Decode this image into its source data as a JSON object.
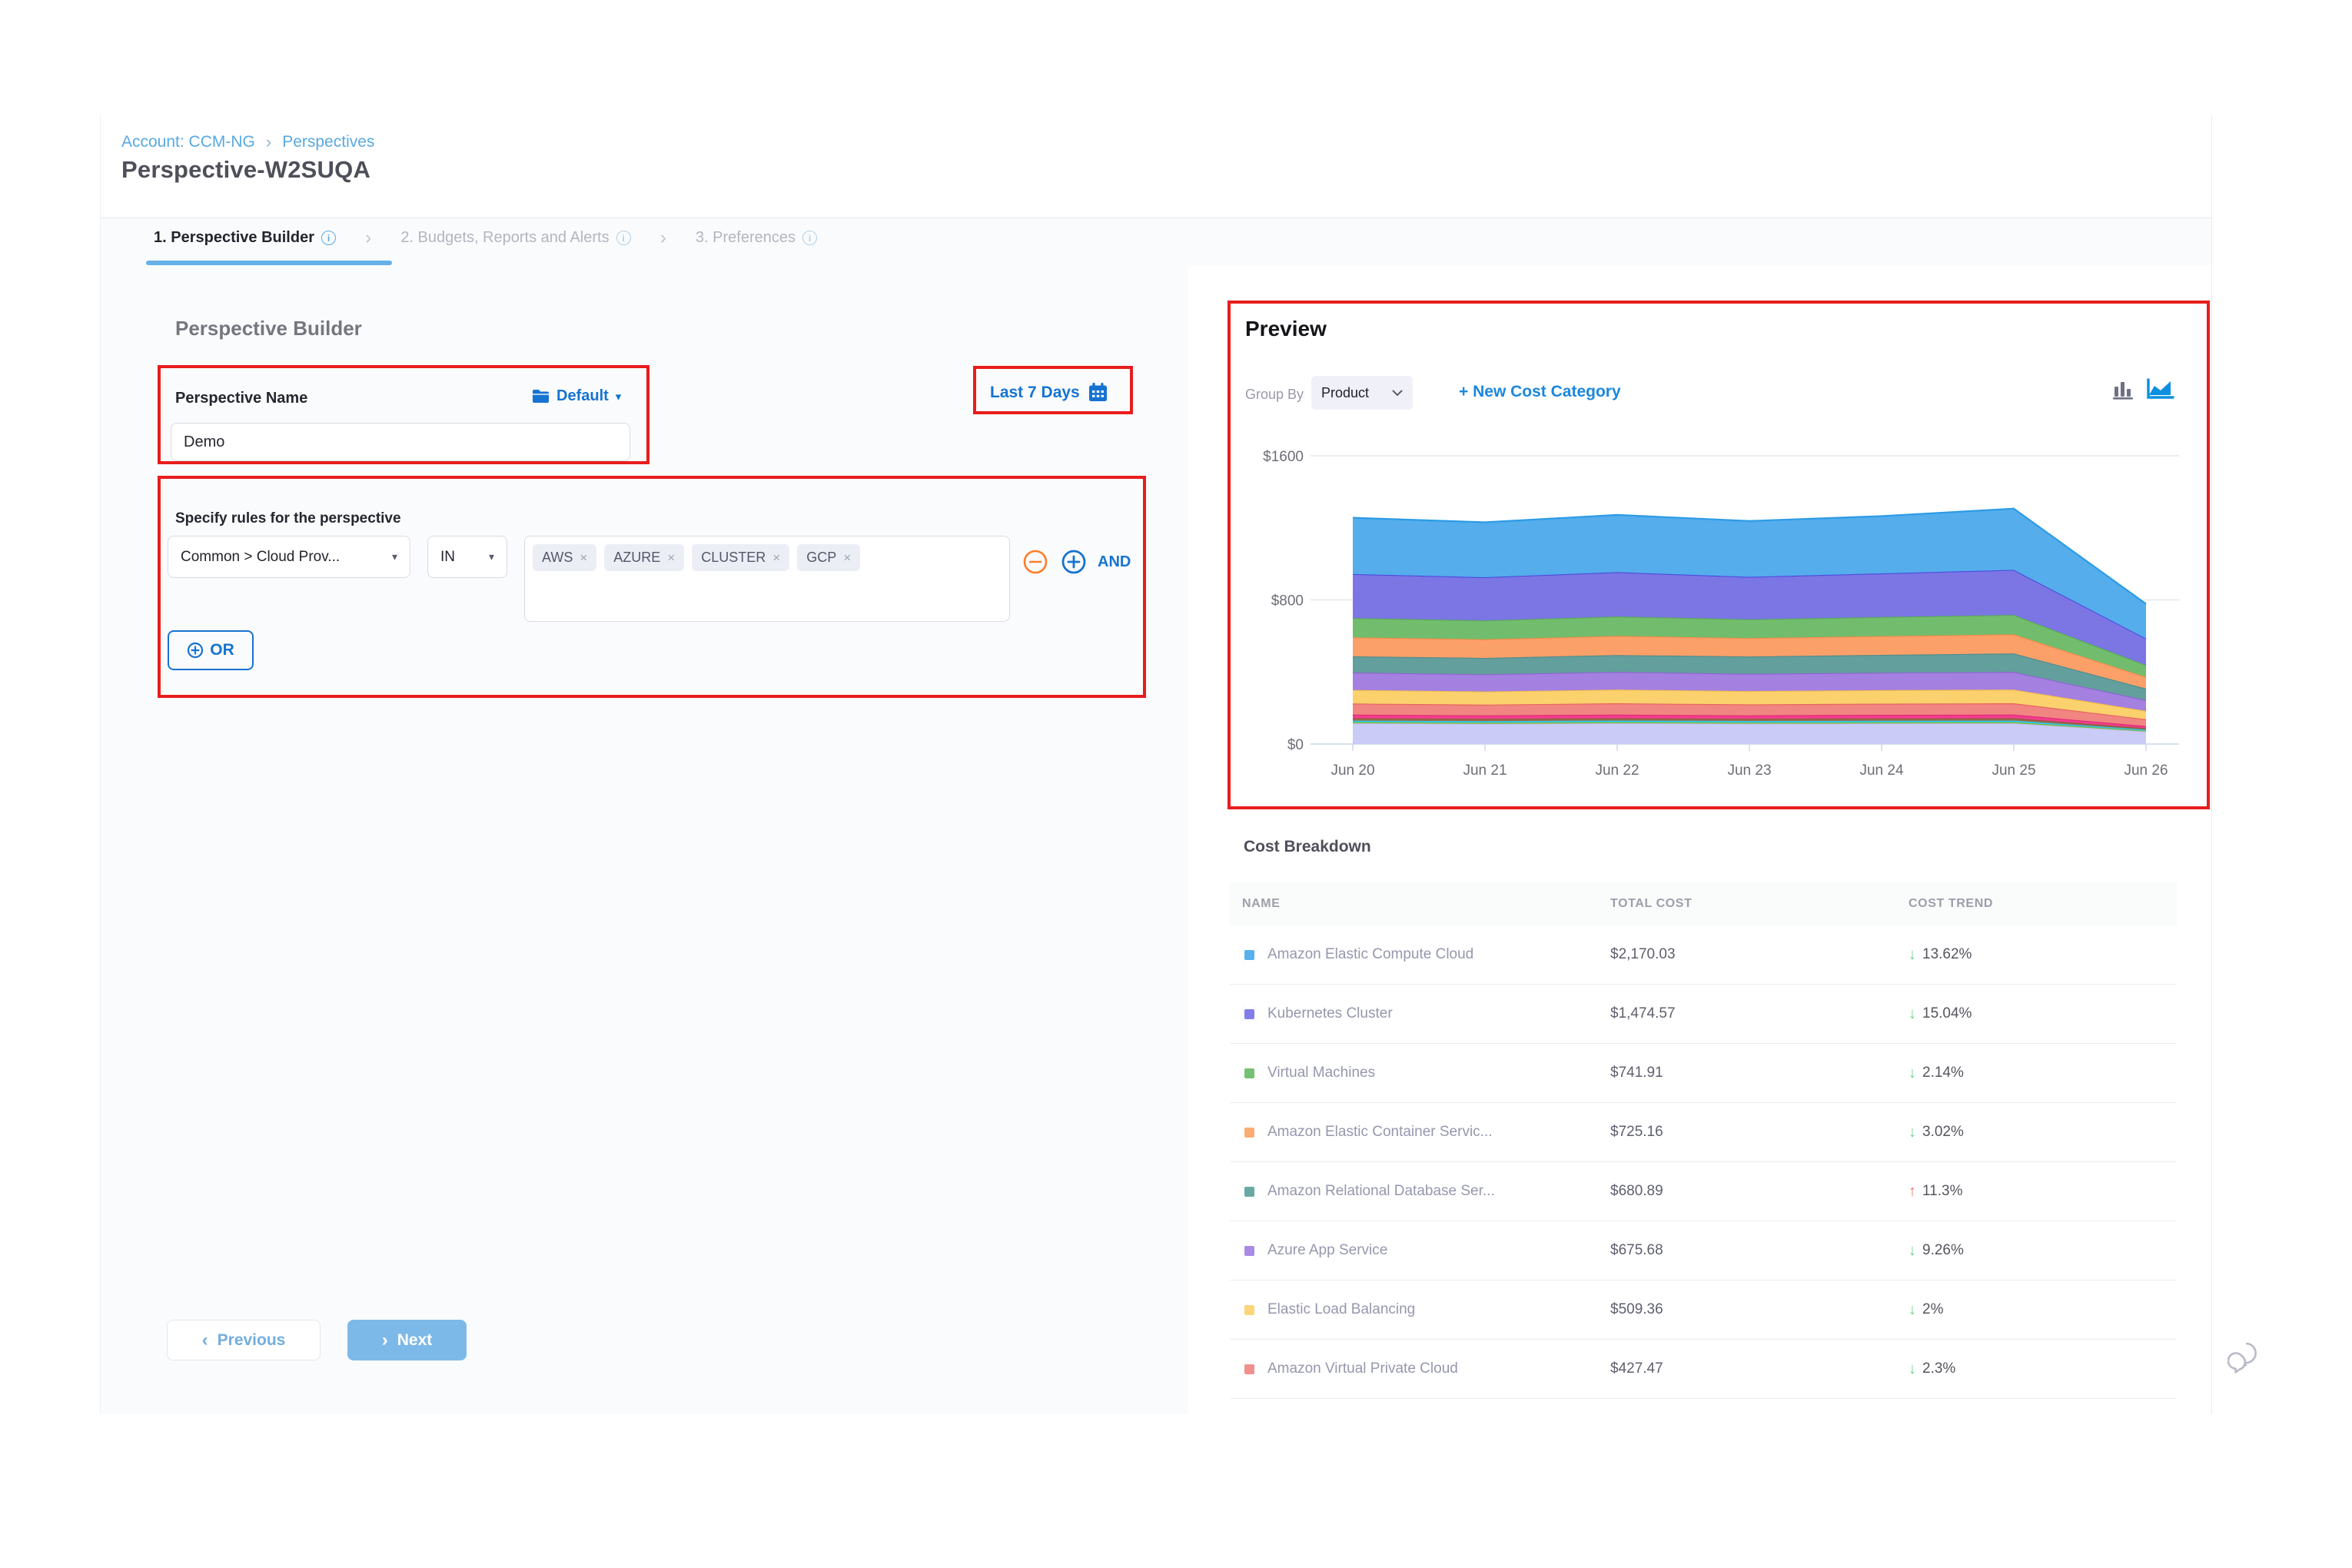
{
  "breadcrumb": {
    "items": [
      "Account: CCM-NG",
      "Perspectives"
    ]
  },
  "page_title": "Perspective-W2SUQA",
  "tabs": [
    {
      "label": "1. Perspective Builder",
      "active": true
    },
    {
      "label": "2. Budgets, Reports and Alerts",
      "active": false
    },
    {
      "label": "3. Preferences",
      "active": false
    }
  ],
  "builder": {
    "heading": "Perspective Builder",
    "name_label": "Perspective Name",
    "folder_label": "Default",
    "name_value": "Demo",
    "rules_label": "Specify rules for the perspective",
    "rule": {
      "field": "Common > Cloud Prov...",
      "operator": "IN",
      "values": [
        "AWS",
        "AZURE",
        "CLUSTER",
        "GCP"
      ]
    },
    "and_label": "AND",
    "or_label": "OR",
    "previous_label": "Previous",
    "next_label": "Next"
  },
  "date_range_label": "Last 7 Days",
  "preview": {
    "heading": "Preview",
    "group_by_label": "Group By",
    "group_by_value": "Product",
    "new_cost_category_label": "+ New Cost Category"
  },
  "chart_data": {
    "type": "area",
    "stacked": true,
    "grid": true,
    "legend": false,
    "x": [
      "Jun 20",
      "Jun 21",
      "Jun 22",
      "Jun 23",
      "Jun 24",
      "Jun 25",
      "Jun 26"
    ],
    "ylim": [
      0,
      1600
    ],
    "y_ticks": [
      {
        "label": "$0",
        "value": 0
      },
      {
        "label": "$800",
        "value": 800
      },
      {
        "label": "$1600",
        "value": 1600
      }
    ],
    "series": [
      {
        "name": "unlabeled-lavender",
        "color": "#CACBF6",
        "line": "#BDBFF3",
        "values": [
          115,
          112,
          115,
          113,
          114,
          115,
          70
        ]
      },
      {
        "name": "unlabeled-olive",
        "color": "#8DC63F",
        "line": "#7DB52F",
        "values": [
          6,
          6,
          6,
          6,
          6,
          6,
          4
        ]
      },
      {
        "name": "unlabeled-cyan",
        "color": "#3FD0E9",
        "line": "#27C3DF",
        "values": [
          9,
          9,
          9,
          9,
          9,
          9,
          6
        ]
      },
      {
        "name": "unlabeled-brown",
        "color": "#9D6B4C",
        "line": "#8A5A3C",
        "values": [
          13,
          13,
          13,
          12,
          13,
          13,
          8
        ]
      },
      {
        "name": "unlabeled-pink",
        "color": "#F23E8D",
        "line": "#E02579",
        "values": [
          20,
          19,
          20,
          19,
          20,
          20,
          12
        ]
      },
      {
        "name": "Amazon Virtual Private Cloud",
        "color": "#F08581",
        "line": "#E6605C",
        "values": [
          62,
          60,
          63,
          61,
          62,
          63,
          38
        ]
      },
      {
        "name": "Elastic Load Balancing",
        "color": "#FBD16E",
        "line": "#F4BE45",
        "values": [
          75,
          73,
          76,
          74,
          75,
          76,
          46
        ]
      },
      {
        "name": "Azure App Service",
        "color": "#A480E0",
        "line": "#9063D6",
        "values": [
          97,
          95,
          98,
          96,
          97,
          98,
          60
        ]
      },
      {
        "name": "Amazon Relational Database Service",
        "color": "#639F9D",
        "line": "#4F8C8A",
        "values": [
          90,
          91,
          94,
          96,
          99,
          103,
          64
        ]
      },
      {
        "name": "Amazon Elastic Container Service",
        "color": "#FCA069",
        "line": "#F7894B",
        "values": [
          105,
          103,
          106,
          102,
          104,
          106,
          64
        ]
      },
      {
        "name": "Virtual Machines",
        "color": "#72BD6D",
        "line": "#58AC54",
        "values": [
          107,
          105,
          108,
          104,
          106,
          108,
          66
        ]
      },
      {
        "name": "Kubernetes Cluster",
        "color": "#7B76E4",
        "line": "#4C4CDE",
        "values": [
          245,
          240,
          246,
          236,
          242,
          250,
          148
        ]
      },
      {
        "name": "Amazon Elastic Compute Cloud",
        "color": "#55ADEC",
        "line": "#2D9BE5",
        "values": [
          312,
          305,
          318,
          310,
          318,
          340,
          192
        ]
      }
    ]
  },
  "cost_breakdown": {
    "heading": "Cost Breakdown",
    "columns": [
      "NAME",
      "TOTAL COST",
      "COST TREND"
    ],
    "rows": [
      {
        "name": "Amazon Elastic Compute Cloud",
        "color": "#58B1EE",
        "total_cost": "$2,170.03",
        "trend": "13.62%",
        "direction": "down"
      },
      {
        "name": "Kubernetes Cluster",
        "color": "#817EE9",
        "total_cost": "$1,474.57",
        "trend": "15.04%",
        "direction": "down"
      },
      {
        "name": "Virtual Machines",
        "color": "#76C174",
        "total_cost": "$741.91",
        "trend": "2.14%",
        "direction": "down"
      },
      {
        "name": "Amazon Elastic Container Servic...",
        "color": "#FCAB72",
        "total_cost": "$725.16",
        "trend": "3.02%",
        "direction": "down"
      },
      {
        "name": "Amazon Relational Database Ser...",
        "color": "#6AA8A5",
        "total_cost": "$680.89",
        "trend": "11.3%",
        "direction": "up"
      },
      {
        "name": "Azure App Service",
        "color": "#A98AE5",
        "total_cost": "$675.68",
        "trend": "9.26%",
        "direction": "down"
      },
      {
        "name": "Elastic Load Balancing",
        "color": "#FBD578",
        "total_cost": "$509.36",
        "trend": "2%",
        "direction": "down"
      },
      {
        "name": "Amazon Virtual Private Cloud",
        "color": "#F0918D",
        "total_cost": "$427.47",
        "trend": "2.3%",
        "direction": "down"
      }
    ]
  },
  "colors": {
    "accent_blue": "#1673d1",
    "link_blue": "#1b87de",
    "annotation_red": "#e81d1d",
    "trend_down_green": "#6fcf8f",
    "trend_up_red": "#f0716b"
  }
}
